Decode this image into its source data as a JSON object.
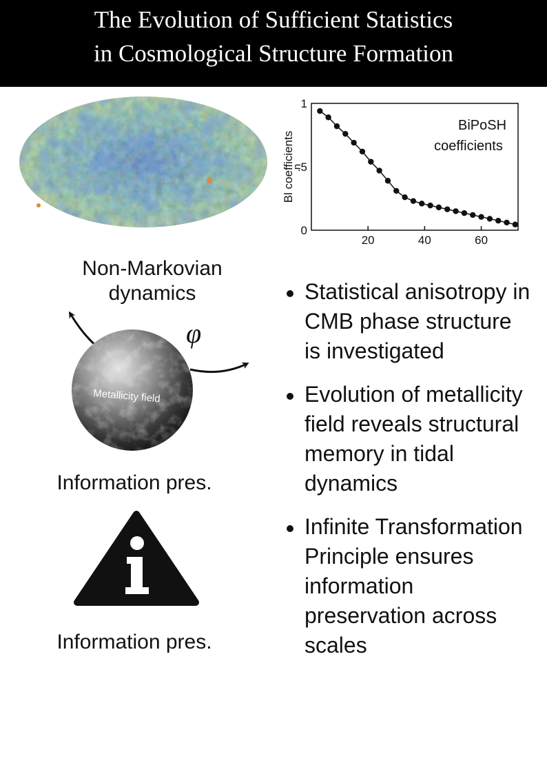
{
  "header": {
    "title_line1": "The Evolution of Sufficient Statistics",
    "title_line2": "in Cosmological Structure Formation"
  },
  "chart_data": {
    "type": "line",
    "annotation": "BiPoSH coefficients",
    "annotation_line1": "BiPoSH",
    "annotation_line2": "coefficients",
    "ylabel": "Bl coefficients",
    "ylabel_line1": "Bl coefficients",
    "ylabel_line2": "n",
    "xlim": [
      0,
      73
    ],
    "ylim": [
      0,
      1
    ],
    "xticks": [
      "20",
      "40",
      "60"
    ],
    "yticks": [
      "0",
      ".5",
      "1"
    ],
    "x": [
      3,
      6,
      9,
      12,
      15,
      18,
      21,
      24,
      27,
      30,
      33,
      36,
      39,
      42,
      45,
      48,
      51,
      54,
      57,
      60,
      63,
      66,
      69,
      72
    ],
    "y": [
      0.94,
      0.89,
      0.82,
      0.76,
      0.69,
      0.62,
      0.54,
      0.47,
      0.39,
      0.31,
      0.26,
      0.23,
      0.21,
      0.195,
      0.18,
      0.165,
      0.15,
      0.135,
      0.12,
      0.105,
      0.09,
      0.075,
      0.06,
      0.045
    ]
  },
  "figure": {
    "phi_symbol": "φ",
    "sphere_label": "Metallicity field",
    "info_glyph": "i"
  },
  "captions": {
    "nonmarkov_line1": "Non-Markovian",
    "nonmarkov_line2": "dynamics",
    "info_pres_1": "Information pres.",
    "info_pres_2": "Information pres."
  },
  "bullets": [
    "Statistical anisotropy in CMB phase structure is investigated",
    "Evolution of metallicity field reveals structural memory in tidal dynamics",
    "Infinite Transformation Principle ensures information preservation across scales"
  ],
  "colors": {
    "header_bg": "#000000",
    "header_text": "#ffffff",
    "cmb_blue": "#2f5fae",
    "cmb_green": "#6fae8a",
    "cmb_yellow": "#c9c46a",
    "cmb_orange": "#e08a3a",
    "marker": "#111111"
  }
}
